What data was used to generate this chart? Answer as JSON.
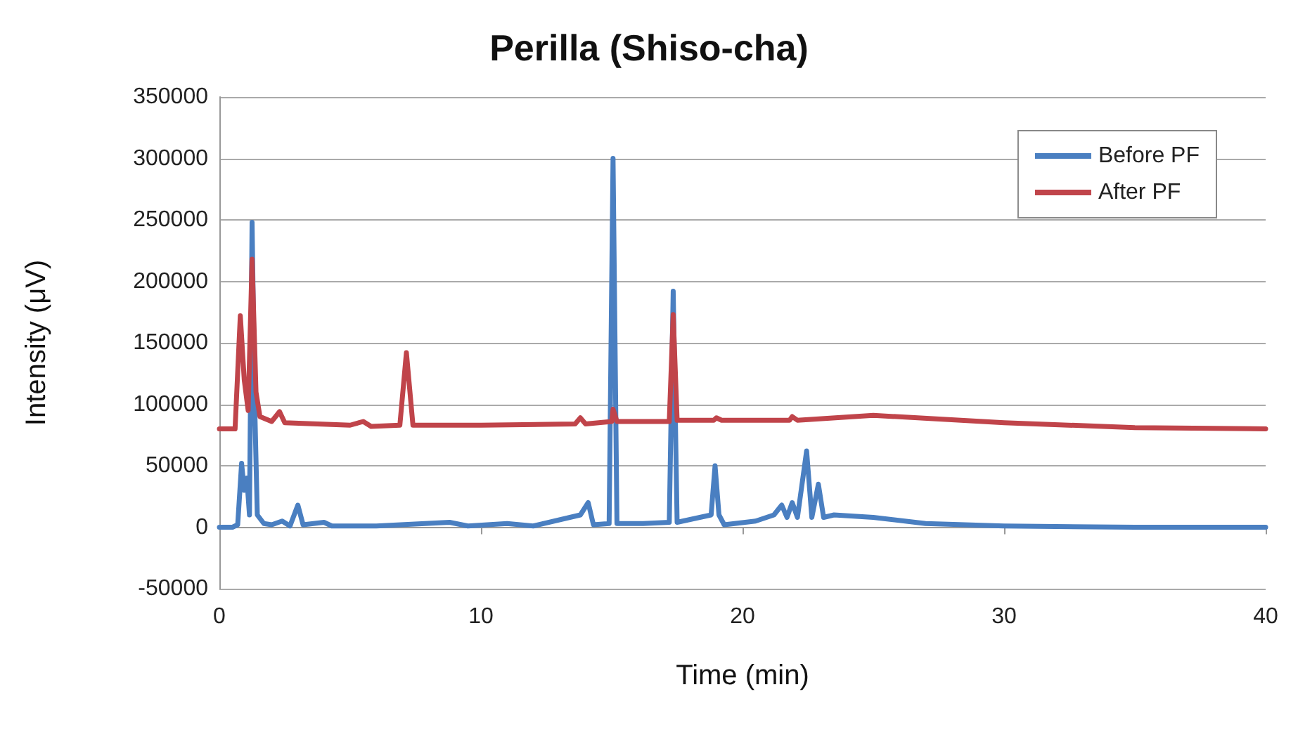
{
  "chart_data": {
    "type": "line",
    "title": "Perilla (Shiso-cha)",
    "xlabel": "Time (min)",
    "ylabel": "Intensity (μV)",
    "xlim": [
      0,
      40
    ],
    "xticks": [
      0,
      10,
      20,
      30,
      40
    ],
    "ylim": [
      -50000,
      350000
    ],
    "yticks": [
      -50000,
      0,
      50000,
      100000,
      150000,
      200000,
      250000,
      300000,
      350000
    ],
    "grid": "y",
    "legend": "top right",
    "marker": "none",
    "line_style": "solid",
    "series": [
      {
        "name": "Before PF",
        "color": "#4a7fc1",
        "x": [
          0,
          0.5,
          0.7,
          0.85,
          0.95,
          1.05,
          1.15,
          1.25,
          1.35,
          1.45,
          1.7,
          2,
          2.4,
          2.7,
          3,
          3.2,
          4,
          4.3,
          6,
          8.8,
          9.5,
          11,
          12,
          13.8,
          14.1,
          14.3,
          14.9,
          15.05,
          15.2,
          16.2,
          17.2,
          17.35,
          17.5,
          18.8,
          18.95,
          19.1,
          19.3,
          20.5,
          21.2,
          21.5,
          21.7,
          21.9,
          22.1,
          22.45,
          22.65,
          22.9,
          23.1,
          23.5,
          25,
          27,
          30,
          35,
          40
        ],
        "values": [
          0,
          0,
          2000,
          52000,
          30000,
          40000,
          10000,
          248000,
          100000,
          10000,
          3000,
          2000,
          5000,
          1000,
          18000,
          2000,
          4000,
          1000,
          1000,
          4000,
          1000,
          3000,
          1000,
          10000,
          20000,
          2000,
          3000,
          300000,
          3000,
          3000,
          4000,
          192000,
          4000,
          10000,
          50000,
          10000,
          2000,
          5000,
          10000,
          18000,
          8000,
          20000,
          8000,
          62000,
          8000,
          35000,
          8000,
          10000,
          8000,
          3000,
          1000,
          0,
          0
        ]
      },
      {
        "name": "After PF",
        "color": "#c0444a",
        "x": [
          0,
          0.6,
          0.8,
          0.95,
          1.1,
          1.25,
          1.4,
          1.55,
          2,
          2.3,
          2.5,
          5,
          5.5,
          5.8,
          6.9,
          7.15,
          7.4,
          10,
          13.6,
          13.8,
          14,
          15,
          15.05,
          15.2,
          17.2,
          17.35,
          17.5,
          18.9,
          19,
          19.2,
          21.8,
          21.9,
          22.1,
          25,
          30,
          35,
          40
        ],
        "values": [
          80000,
          80000,
          172000,
          120000,
          95000,
          218000,
          110000,
          90000,
          86000,
          94000,
          85000,
          83000,
          86000,
          82000,
          83000,
          142000,
          83000,
          83000,
          84000,
          89000,
          84000,
          86000,
          96000,
          86000,
          86000,
          173000,
          87000,
          87000,
          89000,
          87000,
          87000,
          90000,
          87000,
          91000,
          85000,
          81000,
          80000
        ]
      }
    ]
  }
}
